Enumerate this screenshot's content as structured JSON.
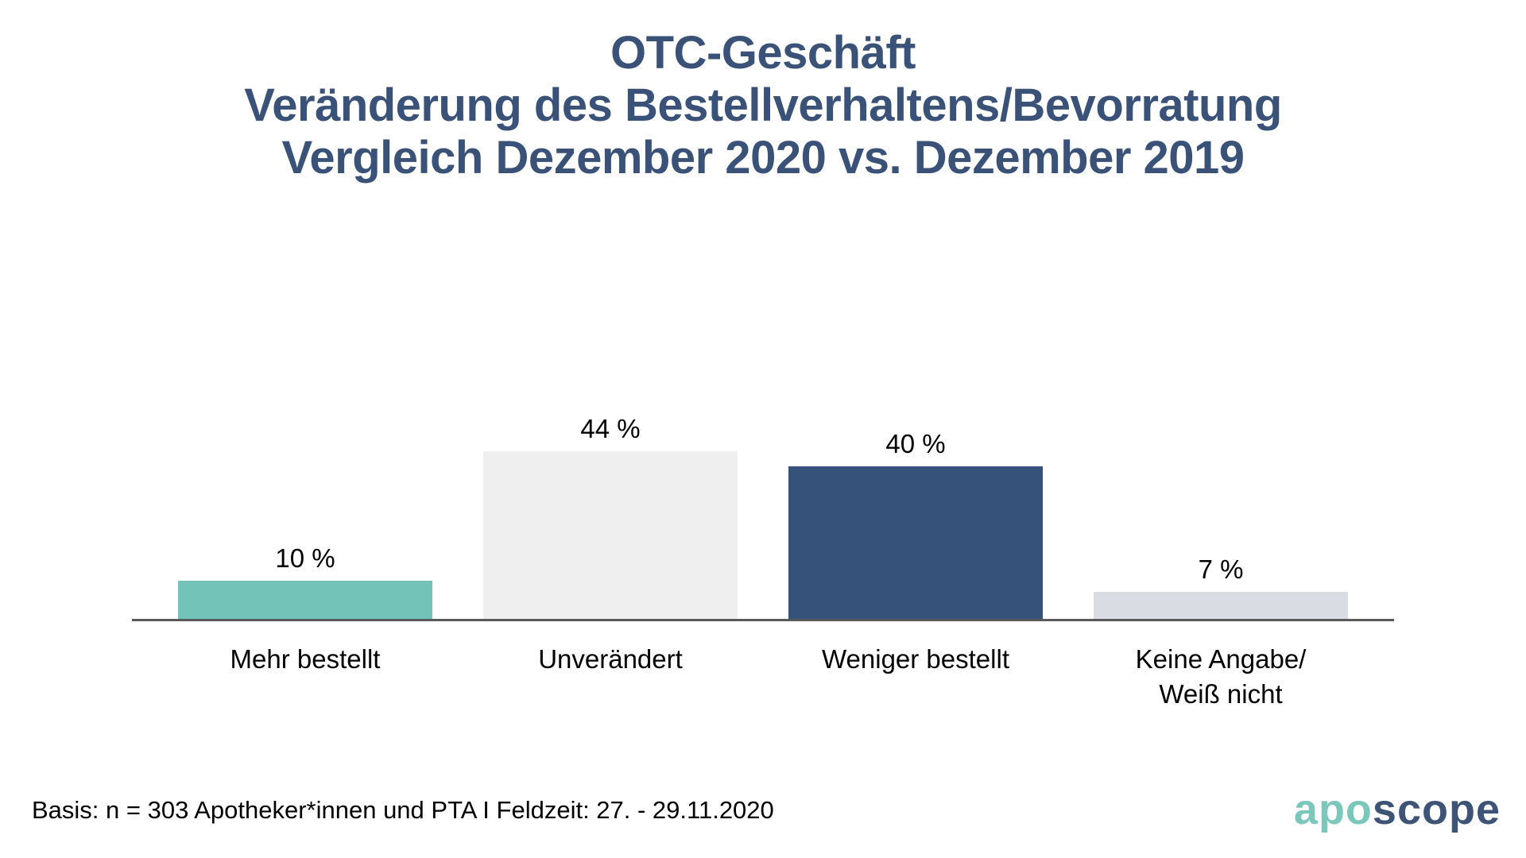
{
  "title": {
    "line1": "OTC-Geschäft",
    "line2": "Veränderung des Bestellverhaltens/Bevorratung",
    "line3": "Vergleich Dezember 2020 vs. Dezember 2019"
  },
  "chart_data": {
    "type": "bar",
    "title": "OTC-Geschäft — Veränderung des Bestellverhaltens/Bevorratung — Vergleich Dezember 2020 vs. Dezember 2019",
    "categories": [
      "Mehr bestellt",
      "Unverändert",
      "Weniger bestellt",
      "Keine Angabe/\nWeiß nicht"
    ],
    "values": [
      10,
      44,
      40,
      7
    ],
    "value_labels": [
      "10 %",
      "44 %",
      "40 %",
      "7 %"
    ],
    "bar_colors": [
      "#73C3B8",
      "#EFEFEF",
      "#36527A",
      "#D9DCE3"
    ],
    "xlabel": "",
    "ylabel": "",
    "ylim": [
      0,
      50
    ],
    "grid": false,
    "legend": false,
    "axis_line_color": "#58595B",
    "title_color": "#3A5278"
  },
  "footer": {
    "basis": "Basis: n = 303 Apotheker*innen und PTA I Feldzeit: 27. - 29.11.2020"
  },
  "logo": {
    "part1": "apo",
    "part2": "scope",
    "part1_color": "#7CC7BC",
    "part2_color": "#3D5477"
  }
}
